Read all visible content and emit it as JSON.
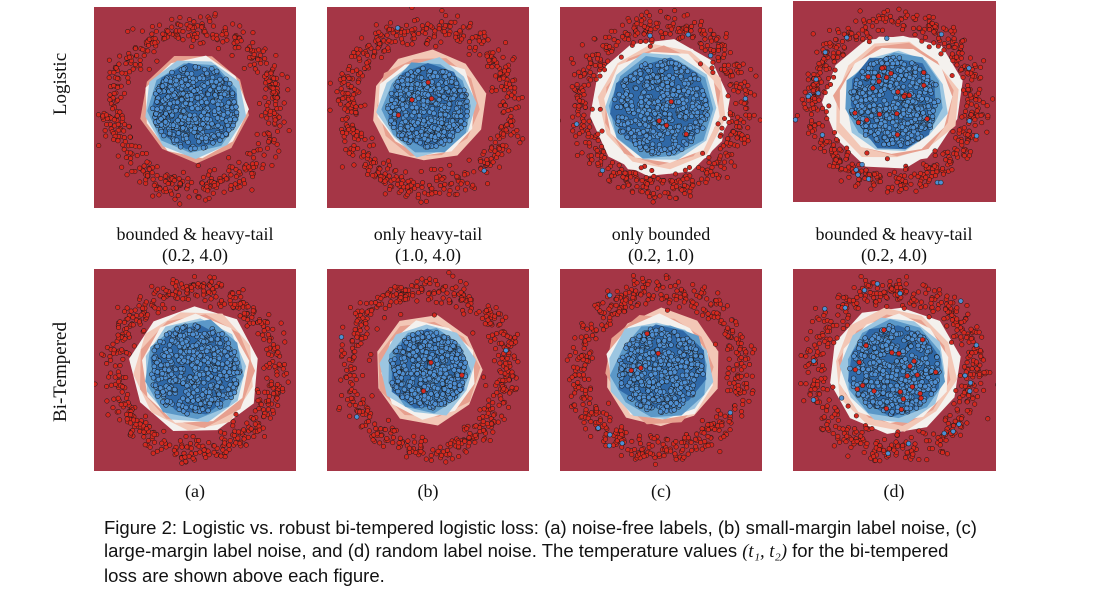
{
  "row_labels": [
    "Logistic",
    "Bi-Tempered"
  ],
  "column_labels": [
    {
      "name": "bounded & heavy-tail",
      "temps": "(0.2, 4.0)",
      "sub": "(a)"
    },
    {
      "name": "only heavy-tail",
      "temps": "(1.0, 4.0)",
      "sub": "(b)"
    },
    {
      "name": "only bounded",
      "temps": "(0.2, 1.0)",
      "sub": "(c)"
    },
    {
      "name": "bounded & heavy-tail",
      "temps": "(0.2, 4.0)",
      "sub": "(d)"
    }
  ],
  "caption": {
    "before": "Figure 2: Logistic vs. robust bi-tempered logistic loss: (a) noise-free labels, (b) small-margin label noise, (c) large-margin label noise, and (d) random label noise. The temperature values ",
    "math": "(t₁, t₂)",
    "after": " for the bi-tempered loss are shown above each figure."
  },
  "colors": {
    "red_bg": "#a53646",
    "blue_dark": "#2f68a7",
    "blue_mid": "#5b98c8",
    "blue_light": "#9cc6e1",
    "white_band": "#f4f1ee",
    "pink_band": "#e7a08f",
    "red_point": "#d3281f",
    "blue_point": "#4f8fd2"
  }
}
